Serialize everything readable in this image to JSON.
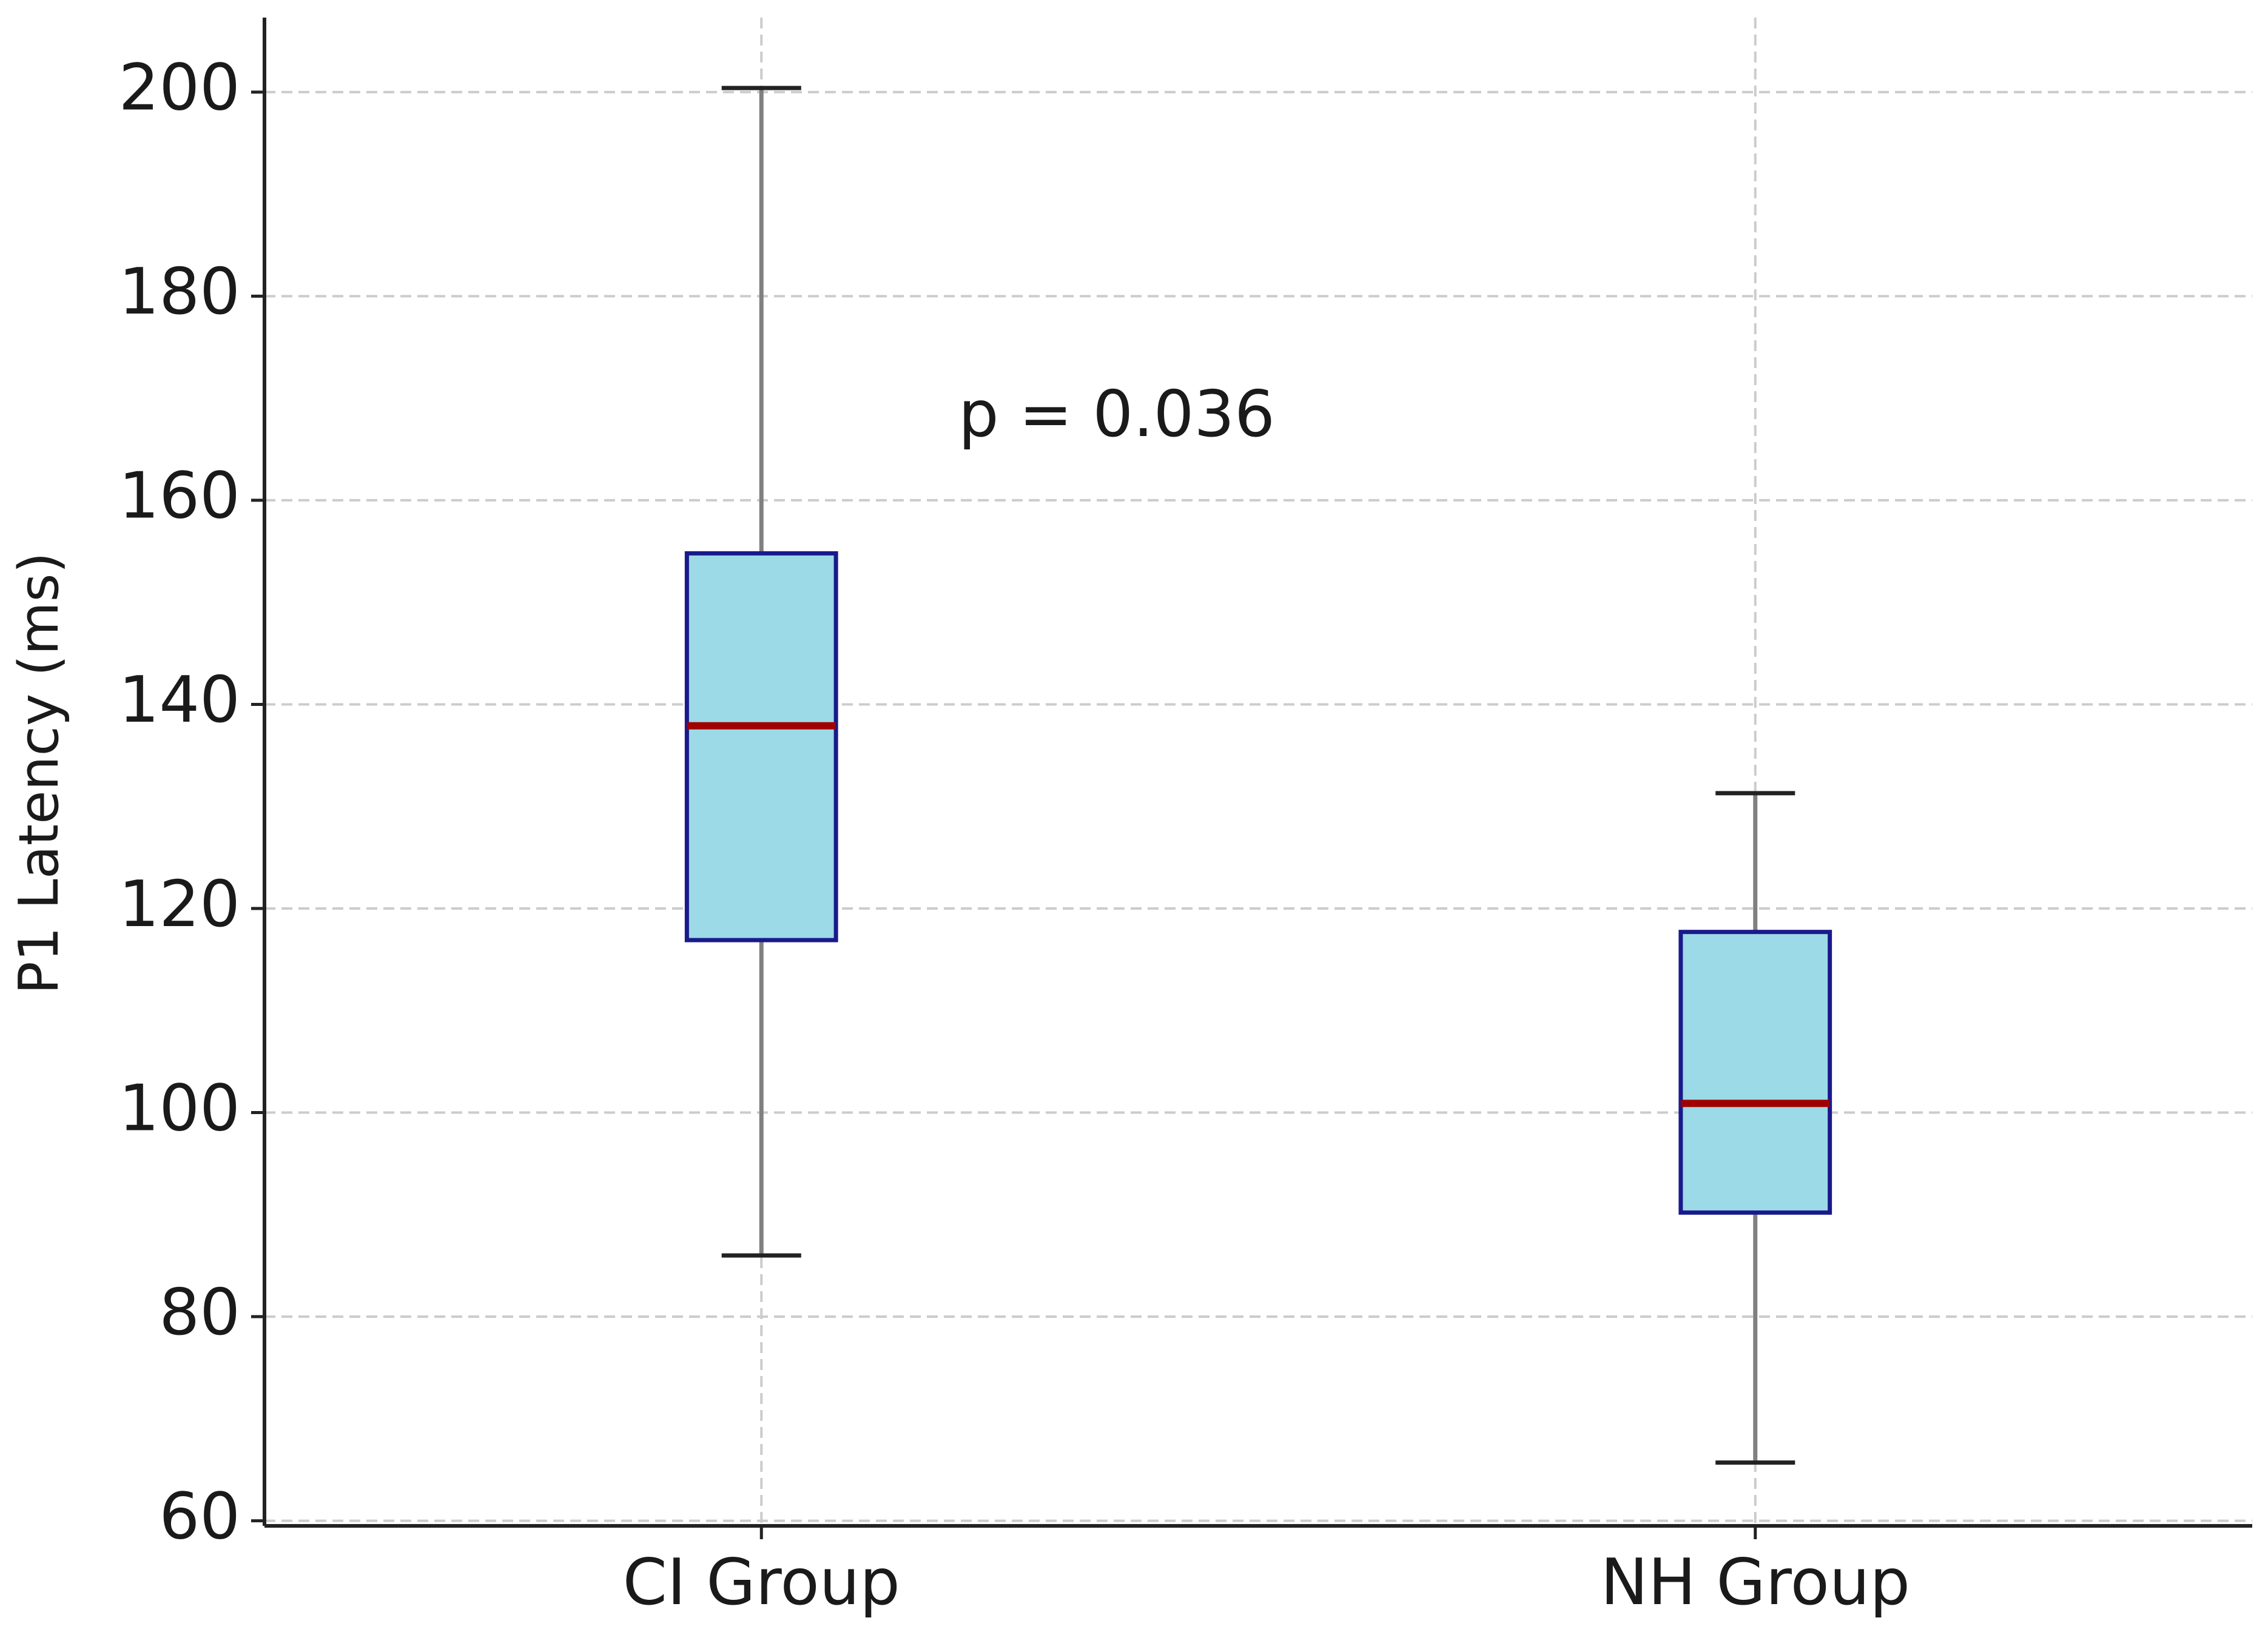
{
  "chart_data": {
    "type": "box",
    "y_label": "P1 Latency (ms)",
    "annotation": "p = 0.036",
    "categories": [
      "CI Group",
      "NH Group"
    ],
    "min": [
      86.0,
      65.7
    ],
    "q1": [
      116.9,
      90.2
    ],
    "median": [
      137.9,
      100.9
    ],
    "q3": [
      154.8,
      117.7
    ],
    "max": [
      200.4,
      131.3
    ],
    "xlim": [
      0.5,
      2.5
    ],
    "ylim": [
      59.5,
      207.3
    ],
    "yticks": [
      60,
      80,
      100,
      120,
      140,
      160,
      180,
      200
    ],
    "grid": true,
    "box_color": "#9bdae6",
    "edge_color": "#1a1a8c",
    "median_color": "#a00000",
    "whisker_color": "#808080",
    "cap_color": "#222222"
  }
}
